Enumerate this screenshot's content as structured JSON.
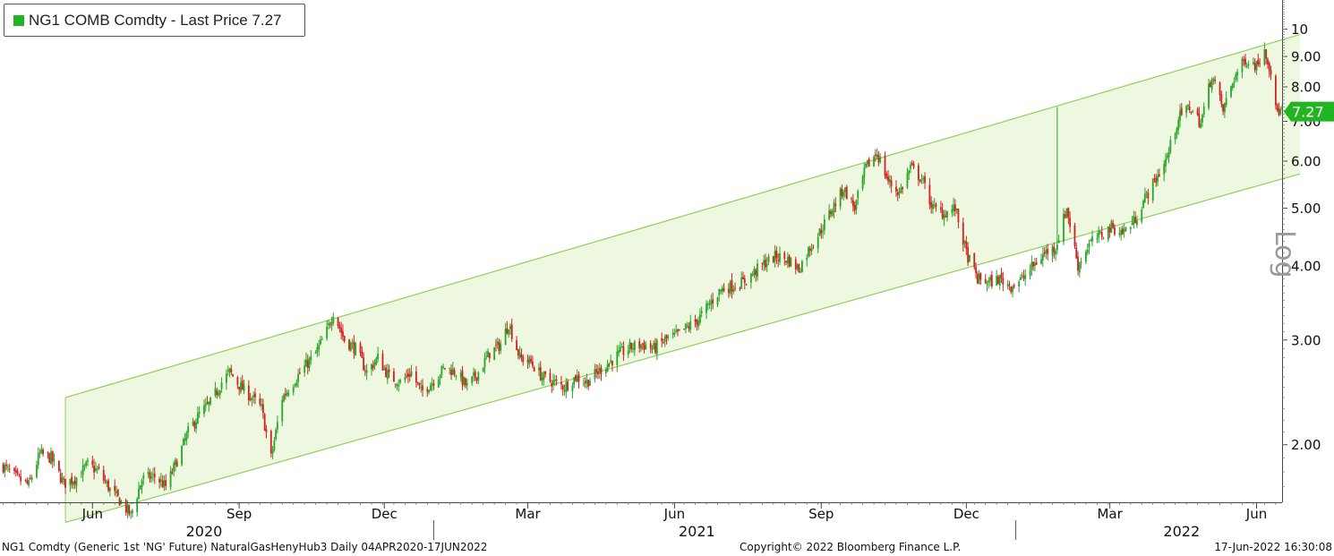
{
  "legend": {
    "label": "NG1 COMB Comdty - Last Price 7.27",
    "swatch_color": "#22b522"
  },
  "last_price_tag": "7.27",
  "log_label": "Log",
  "footer": {
    "left": "NG1 Comdty (Generic 1st 'NG' Future) NaturalGasHenyHub3  Daily 04APR2020-17JUN2022",
    "center": "Copyright© 2022 Bloomberg Finance L.P.",
    "right": "17-Jun-2022 16:30:08"
  },
  "colors": {
    "up": "#2aa52a",
    "down": "#d42020",
    "channel_fill": "#eef7df",
    "channel_line": "#8fd15a",
    "price_tag": "#22b522"
  },
  "chart_data": {
    "type": "candlestick",
    "title": "NG1 COMB Comdty - Last Price 7.27",
    "y_scale": "log",
    "ylim": [
      1.6,
      11.2
    ],
    "y_ticks": [
      2.0,
      3.0,
      4.0,
      5.0,
      6.0,
      7.0,
      8.0,
      9.0,
      10
    ],
    "y_tick_labels": [
      "2.00",
      "3.00",
      "4.00",
      "5.00",
      "6.00",
      "7.00",
      "8.00",
      "9.00",
      "10"
    ],
    "xlim": [
      "2020-04-04",
      "2022-06-17"
    ],
    "x_month_ticks": [
      {
        "date": "2020-06-01",
        "label": "Jun"
      },
      {
        "date": "2020-09-01",
        "label": "Sep"
      },
      {
        "date": "2020-12-01",
        "label": "Dec"
      },
      {
        "date": "2021-03-01",
        "label": "Mar"
      },
      {
        "date": "2021-06-01",
        "label": "Jun"
      },
      {
        "date": "2021-09-01",
        "label": "Sep"
      },
      {
        "date": "2021-12-01",
        "label": "Dec"
      },
      {
        "date": "2022-03-01",
        "label": "Mar"
      },
      {
        "date": "2022-06-01",
        "label": "Jun"
      }
    ],
    "x_year_labels": [
      {
        "label": "2020",
        "date": "2020-08-10"
      },
      {
        "label": "2021",
        "date": "2021-06-15"
      },
      {
        "label": "2022",
        "date": "2022-04-15"
      }
    ],
    "x_year_separators": [
      "2021-01-01",
      "2022-01-01"
    ],
    "last_price": 7.27,
    "channel": {
      "start": "2020-05-15",
      "end": "2022-06-17",
      "upper": [
        2.4,
        9.6
      ],
      "lower": [
        1.48,
        5.6
      ]
    },
    "close_path": [
      [
        "2020-04-06",
        1.84
      ],
      [
        "2020-04-14",
        1.76
      ],
      [
        "2020-04-22",
        1.71
      ],
      [
        "2020-04-29",
        1.93
      ],
      [
        "2020-05-06",
        1.9
      ],
      [
        "2020-05-14",
        1.72
      ],
      [
        "2020-05-22",
        1.76
      ],
      [
        "2020-05-29",
        1.85
      ],
      [
        "2020-06-05",
        1.8
      ],
      [
        "2020-06-12",
        1.68
      ],
      [
        "2020-06-19",
        1.6
      ],
      [
        "2020-06-25",
        1.52
      ],
      [
        "2020-07-02",
        1.75
      ],
      [
        "2020-07-10",
        1.77
      ],
      [
        "2020-07-17",
        1.7
      ],
      [
        "2020-07-24",
        1.88
      ],
      [
        "2020-07-31",
        2.1
      ],
      [
        "2020-08-07",
        2.25
      ],
      [
        "2020-08-14",
        2.35
      ],
      [
        "2020-08-21",
        2.55
      ],
      [
        "2020-08-26",
        2.65
      ],
      [
        "2020-09-02",
        2.5
      ],
      [
        "2020-09-09",
        2.4
      ],
      [
        "2020-09-15",
        2.3
      ],
      [
        "2020-09-21",
        1.9
      ],
      [
        "2020-09-28",
        2.4
      ],
      [
        "2020-10-05",
        2.55
      ],
      [
        "2020-10-12",
        2.7
      ],
      [
        "2020-10-19",
        2.85
      ],
      [
        "2020-10-26",
        3.1
      ],
      [
        "2020-10-30",
        3.35
      ],
      [
        "2020-11-06",
        3.0
      ],
      [
        "2020-11-13",
        2.9
      ],
      [
        "2020-11-20",
        2.65
      ],
      [
        "2020-11-27",
        2.8
      ],
      [
        "2020-12-04",
        2.6
      ],
      [
        "2020-12-11",
        2.55
      ],
      [
        "2020-12-18",
        2.65
      ],
      [
        "2020-12-24",
        2.45
      ],
      [
        "2020-12-31",
        2.55
      ],
      [
        "2021-01-08",
        2.7
      ],
      [
        "2021-01-15",
        2.65
      ],
      [
        "2021-01-22",
        2.5
      ],
      [
        "2021-01-29",
        2.65
      ],
      [
        "2021-02-05",
        2.85
      ],
      [
        "2021-02-12",
        2.95
      ],
      [
        "2021-02-17",
        3.2
      ],
      [
        "2021-02-24",
        2.8
      ],
      [
        "2021-03-03",
        2.75
      ],
      [
        "2021-03-10",
        2.6
      ],
      [
        "2021-03-17",
        2.55
      ],
      [
        "2021-03-24",
        2.5
      ],
      [
        "2021-03-31",
        2.6
      ],
      [
        "2021-04-07",
        2.55
      ],
      [
        "2021-04-14",
        2.65
      ],
      [
        "2021-04-21",
        2.75
      ],
      [
        "2021-04-28",
        2.85
      ],
      [
        "2021-05-05",
        2.92
      ],
      [
        "2021-05-12",
        2.95
      ],
      [
        "2021-05-19",
        2.9
      ],
      [
        "2021-05-26",
        3.0
      ],
      [
        "2021-06-02",
        3.05
      ],
      [
        "2021-06-09",
        3.15
      ],
      [
        "2021-06-16",
        3.25
      ],
      [
        "2021-06-23",
        3.45
      ],
      [
        "2021-06-30",
        3.65
      ],
      [
        "2021-07-07",
        3.7
      ],
      [
        "2021-07-14",
        3.75
      ],
      [
        "2021-07-21",
        3.9
      ],
      [
        "2021-07-28",
        4.05
      ],
      [
        "2021-08-04",
        4.15
      ],
      [
        "2021-08-11",
        4.1
      ],
      [
        "2021-08-18",
        3.95
      ],
      [
        "2021-08-25",
        4.3
      ],
      [
        "2021-09-01",
        4.6
      ],
      [
        "2021-09-08",
        5.0
      ],
      [
        "2021-09-15",
        5.4
      ],
      [
        "2021-09-22",
        5.0
      ],
      [
        "2021-09-29",
        5.85
      ],
      [
        "2021-10-06",
        6.2
      ],
      [
        "2021-10-13",
        5.55
      ],
      [
        "2021-10-20",
        5.3
      ],
      [
        "2021-10-27",
        5.85
      ],
      [
        "2021-11-03",
        5.6
      ],
      [
        "2021-11-10",
        5.0
      ],
      [
        "2021-11-17",
        4.9
      ],
      [
        "2021-11-24",
        5.0
      ],
      [
        "2021-12-01",
        4.2
      ],
      [
        "2021-12-08",
        3.8
      ],
      [
        "2021-12-15",
        3.75
      ],
      [
        "2021-12-22",
        3.8
      ],
      [
        "2021-12-29",
        3.7
      ],
      [
        "2022-01-05",
        3.8
      ],
      [
        "2022-01-12",
        4.0
      ],
      [
        "2022-01-19",
        4.2
      ],
      [
        "2022-01-26",
        4.3
      ],
      [
        "2022-02-02",
        5.0
      ],
      [
        "2022-02-09",
        4.0
      ],
      [
        "2022-02-16",
        4.35
      ],
      [
        "2022-02-23",
        4.5
      ],
      [
        "2022-03-02",
        4.65
      ],
      [
        "2022-03-09",
        4.55
      ],
      [
        "2022-03-16",
        4.75
      ],
      [
        "2022-03-23",
        5.2
      ],
      [
        "2022-03-30",
        5.6
      ],
      [
        "2022-04-06",
        6.1
      ],
      [
        "2022-04-13",
        7.1
      ],
      [
        "2022-04-20",
        7.4
      ],
      [
        "2022-04-27",
        6.95
      ],
      [
        "2022-05-04",
        8.4
      ],
      [
        "2022-05-11",
        7.3
      ],
      [
        "2022-05-18",
        8.3
      ],
      [
        "2022-05-25",
        8.9
      ],
      [
        "2022-06-01",
        8.7
      ],
      [
        "2022-06-06",
        9.3
      ],
      [
        "2022-06-10",
        8.5
      ],
      [
        "2022-06-13",
        7.3
      ],
      [
        "2022-06-17",
        7.27
      ]
    ],
    "notable_spike": {
      "date": "2022-01-27",
      "high": 7.4
    }
  }
}
